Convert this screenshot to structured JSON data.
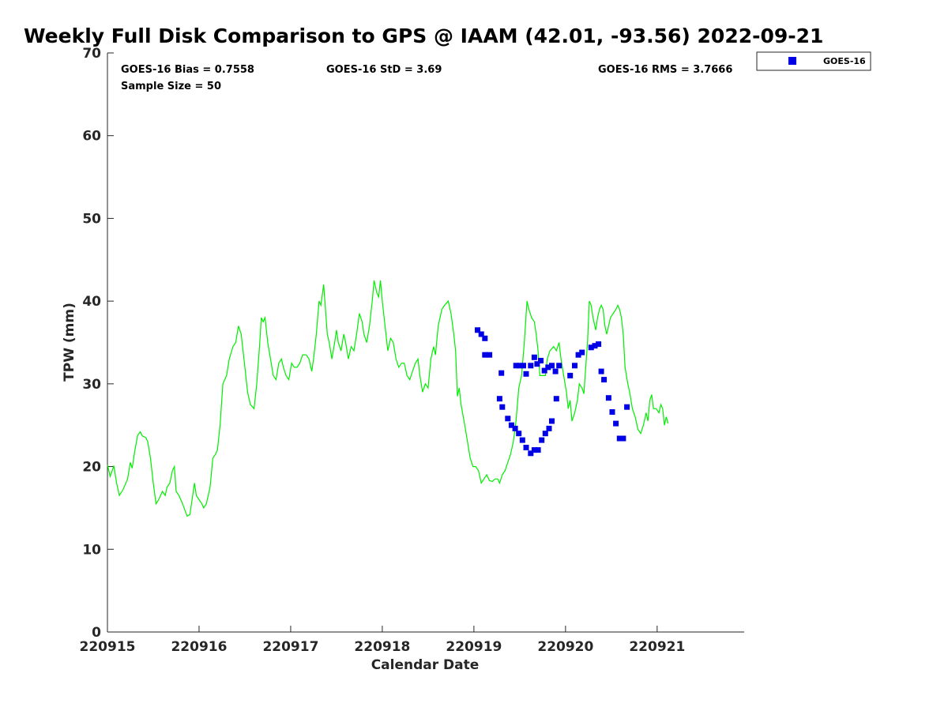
{
  "chart_data": {
    "type": "scatter",
    "title": "Weekly Full Disk Comparison to GPS @ IAAM (42.01, -93.56) 2022-09-21",
    "xlabel": "Calendar Date",
    "ylabel": "TPW (mm)",
    "xlim": [
      0,
      6.95
    ],
    "ylim": [
      0,
      70
    ],
    "xticks": [
      0,
      1,
      2,
      3,
      4,
      5,
      6
    ],
    "xtick_labels": [
      "220915",
      "220916",
      "220917",
      "220918",
      "220919",
      "220920",
      "220921"
    ],
    "yticks": [
      0,
      10,
      20,
      30,
      40,
      50,
      60,
      70
    ],
    "ytick_labels": [
      "0",
      "10",
      "20",
      "30",
      "40",
      "50",
      "60",
      "70"
    ],
    "grid": false,
    "legend_position": "top-right-outside",
    "stats": {
      "bias": "GOES-16 Bias = 0.7558",
      "std": "GOES-16 StD = 3.69",
      "rms": "GOES-16 RMS = 3.7666",
      "sample": "Sample Size = 50"
    },
    "series": [
      {
        "name": "GPS",
        "kind": "line",
        "color": "#00ee00",
        "points": [
          [
            0.0,
            20.2
          ],
          [
            0.03,
            18.8
          ],
          [
            0.07,
            20.1
          ],
          [
            0.1,
            18.0
          ],
          [
            0.13,
            16.5
          ],
          [
            0.17,
            17.2
          ],
          [
            0.22,
            18.5
          ],
          [
            0.25,
            20.5
          ],
          [
            0.27,
            19.8
          ],
          [
            0.3,
            22.0
          ],
          [
            0.33,
            23.8
          ],
          [
            0.36,
            24.2
          ],
          [
            0.38,
            23.7
          ],
          [
            0.42,
            23.5
          ],
          [
            0.44,
            23.0
          ],
          [
            0.47,
            21.0
          ],
          [
            0.5,
            18.0
          ],
          [
            0.53,
            15.5
          ],
          [
            0.56,
            16.0
          ],
          [
            0.6,
            17.0
          ],
          [
            0.63,
            16.5
          ],
          [
            0.65,
            17.5
          ],
          [
            0.68,
            18.0
          ],
          [
            0.71,
            19.5
          ],
          [
            0.73,
            20.0
          ],
          [
            0.75,
            17.0
          ],
          [
            0.78,
            16.5
          ],
          [
            0.82,
            15.5
          ],
          [
            0.87,
            14.0
          ],
          [
            0.9,
            14.2
          ],
          [
            0.93,
            16.5
          ],
          [
            0.95,
            18.0
          ],
          [
            0.97,
            16.5
          ],
          [
            1.0,
            16.0
          ],
          [
            1.03,
            15.5
          ],
          [
            1.05,
            15.0
          ],
          [
            1.08,
            15.5
          ],
          [
            1.12,
            17.5
          ],
          [
            1.15,
            21.0
          ],
          [
            1.18,
            21.5
          ],
          [
            1.2,
            22.0
          ],
          [
            1.23,
            25.0
          ],
          [
            1.26,
            30.0
          ],
          [
            1.3,
            31.0
          ],
          [
            1.33,
            33.0
          ],
          [
            1.37,
            34.5
          ],
          [
            1.4,
            35.0
          ],
          [
            1.43,
            37.0
          ],
          [
            1.46,
            36.0
          ],
          [
            1.5,
            32.0
          ],
          [
            1.53,
            29.0
          ],
          [
            1.56,
            27.5
          ],
          [
            1.6,
            27.0
          ],
          [
            1.63,
            30.0
          ],
          [
            1.66,
            34.5
          ],
          [
            1.68,
            38.0
          ],
          [
            1.7,
            37.5
          ],
          [
            1.72,
            38.0
          ],
          [
            1.75,
            35.0
          ],
          [
            1.78,
            33.0
          ],
          [
            1.81,
            31.0
          ],
          [
            1.84,
            30.5
          ],
          [
            1.87,
            32.5
          ],
          [
            1.9,
            33.0
          ],
          [
            1.92,
            32.0
          ],
          [
            1.95,
            31.0
          ],
          [
            1.98,
            30.5
          ],
          [
            2.01,
            32.5
          ],
          [
            2.04,
            32.0
          ],
          [
            2.07,
            32.0
          ],
          [
            2.1,
            32.5
          ],
          [
            2.13,
            33.5
          ],
          [
            2.17,
            33.5
          ],
          [
            2.2,
            33.0
          ],
          [
            2.23,
            31.5
          ],
          [
            2.25,
            33.0
          ],
          [
            2.28,
            36.0
          ],
          [
            2.31,
            40.0
          ],
          [
            2.33,
            39.5
          ],
          [
            2.36,
            42.0
          ],
          [
            2.38,
            39.0
          ],
          [
            2.4,
            36.0
          ],
          [
            2.42,
            35.0
          ],
          [
            2.45,
            33.0
          ],
          [
            2.48,
            35.0
          ],
          [
            2.5,
            36.5
          ],
          [
            2.52,
            35.0
          ],
          [
            2.55,
            34.0
          ],
          [
            2.58,
            36.0
          ],
          [
            2.6,
            35.0
          ],
          [
            2.63,
            33.0
          ],
          [
            2.66,
            34.5
          ],
          [
            2.69,
            34.0
          ],
          [
            2.72,
            36.0
          ],
          [
            2.75,
            38.5
          ],
          [
            2.78,
            37.5
          ],
          [
            2.8,
            36.0
          ],
          [
            2.83,
            35.0
          ],
          [
            2.86,
            37.0
          ],
          [
            2.89,
            40.0
          ],
          [
            2.91,
            42.5
          ],
          [
            2.94,
            41.0
          ],
          [
            2.96,
            40.5
          ],
          [
            2.98,
            42.5
          ],
          [
            3.0,
            40.0
          ],
          [
            3.03,
            37.0
          ],
          [
            3.06,
            34.0
          ],
          [
            3.09,
            35.5
          ],
          [
            3.12,
            35.0
          ],
          [
            3.15,
            33.0
          ],
          [
            3.18,
            32.0
          ],
          [
            3.21,
            32.5
          ],
          [
            3.24,
            32.5
          ],
          [
            3.27,
            31.0
          ],
          [
            3.3,
            30.5
          ],
          [
            3.33,
            31.5
          ],
          [
            3.36,
            32.5
          ],
          [
            3.39,
            33.0
          ],
          [
            3.41,
            31.0
          ],
          [
            3.44,
            29.0
          ],
          [
            3.47,
            30.0
          ],
          [
            3.5,
            29.5
          ],
          [
            3.53,
            33.0
          ],
          [
            3.56,
            34.5
          ],
          [
            3.58,
            33.5
          ],
          [
            3.61,
            37.0
          ],
          [
            3.65,
            39.0
          ],
          [
            3.68,
            39.5
          ],
          [
            3.72,
            40.0
          ],
          [
            3.75,
            38.5
          ],
          [
            3.78,
            36.0
          ],
          [
            3.8,
            34.0
          ],
          [
            3.82,
            28.5
          ],
          [
            3.84,
            29.5
          ],
          [
            3.86,
            27.5
          ],
          [
            3.9,
            25.0
          ],
          [
            3.93,
            23.0
          ],
          [
            3.96,
            21.0
          ],
          [
            3.99,
            20.0
          ],
          [
            4.02,
            20.0
          ],
          [
            4.05,
            19.5
          ],
          [
            4.08,
            18.0
          ],
          [
            4.11,
            18.5
          ],
          [
            4.14,
            19.0
          ],
          [
            4.17,
            18.3
          ],
          [
            4.2,
            18.2
          ],
          [
            4.23,
            18.5
          ],
          [
            4.26,
            18.5
          ],
          [
            4.28,
            18.0
          ],
          [
            4.31,
            19.0
          ],
          [
            4.34,
            19.5
          ],
          [
            4.37,
            20.5
          ],
          [
            4.4,
            21.5
          ],
          [
            4.43,
            23.0
          ],
          [
            4.46,
            25.5
          ],
          [
            4.49,
            29.5
          ],
          [
            4.52,
            31.0
          ],
          [
            4.55,
            35.0
          ],
          [
            4.58,
            40.0
          ],
          [
            4.6,
            39.0
          ],
          [
            4.63,
            38.0
          ],
          [
            4.66,
            37.5
          ],
          [
            4.68,
            36.0
          ],
          [
            4.7,
            34.0
          ],
          [
            4.72,
            31.0
          ],
          [
            4.75,
            31.0
          ],
          [
            4.78,
            31.0
          ],
          [
            4.8,
            33.0
          ],
          [
            4.83,
            34.0
          ],
          [
            4.87,
            34.5
          ],
          [
            4.9,
            34.0
          ],
          [
            4.93,
            35.0
          ],
          [
            4.95,
            33.0
          ],
          [
            4.98,
            31.0
          ],
          [
            5.01,
            29.0
          ],
          [
            5.03,
            27.0
          ],
          [
            5.05,
            28.0
          ],
          [
            5.07,
            25.5
          ],
          [
            5.1,
            26.5
          ],
          [
            5.13,
            28.0
          ],
          [
            5.15,
            30.0
          ],
          [
            5.18,
            29.5
          ],
          [
            5.2,
            28.8
          ],
          [
            5.22,
            32.0
          ],
          [
            5.24,
            35.0
          ],
          [
            5.26,
            40.0
          ],
          [
            5.28,
            39.5
          ],
          [
            5.3,
            38.0
          ],
          [
            5.33,
            36.5
          ],
          [
            5.35,
            38.0
          ],
          [
            5.37,
            39.0
          ],
          [
            5.39,
            39.5
          ],
          [
            5.41,
            39.0
          ],
          [
            5.43,
            37.0
          ],
          [
            5.45,
            36.0
          ],
          [
            5.47,
            37.0
          ],
          [
            5.49,
            38.0
          ],
          [
            5.52,
            38.5
          ],
          [
            5.55,
            39.0
          ],
          [
            5.57,
            39.5
          ],
          [
            5.59,
            39.0
          ],
          [
            5.61,
            38.0
          ],
          [
            5.63,
            36.0
          ],
          [
            5.65,
            32.0
          ],
          [
            5.68,
            30.0
          ],
          [
            5.7,
            29.0
          ],
          [
            5.73,
            27.0
          ],
          [
            5.76,
            26.0
          ],
          [
            5.79,
            24.5
          ],
          [
            5.82,
            24.0
          ],
          [
            5.85,
            25.0
          ],
          [
            5.88,
            26.5
          ],
          [
            5.9,
            25.5
          ],
          [
            5.92,
            28.0
          ],
          [
            5.94,
            28.7
          ],
          [
            5.96,
            27.0
          ],
          [
            5.99,
            27.0
          ],
          [
            6.02,
            26.5
          ],
          [
            6.04,
            27.5
          ],
          [
            6.06,
            27.0
          ],
          [
            6.08,
            25.0
          ],
          [
            6.1,
            26.0
          ],
          [
            6.12,
            25.2
          ]
        ]
      },
      {
        "name": "GOES-16",
        "kind": "marker",
        "color": "#0000e6",
        "points": [
          [
            4.12,
            33.5
          ],
          [
            4.28,
            28.2
          ],
          [
            4.31,
            27.2
          ],
          [
            4.37,
            25.8
          ],
          [
            4.41,
            25.0
          ],
          [
            4.45,
            24.6
          ],
          [
            4.49,
            24.0
          ],
          [
            4.53,
            23.2
          ],
          [
            4.57,
            22.3
          ],
          [
            4.62,
            21.6
          ],
          [
            4.66,
            22.0
          ],
          [
            4.7,
            22.0
          ],
          [
            4.74,
            23.2
          ],
          [
            4.78,
            24.0
          ],
          [
            4.82,
            24.6
          ],
          [
            4.85,
            25.5
          ],
          [
            4.9,
            28.2
          ],
          [
            4.04,
            36.5
          ],
          [
            4.08,
            36.0
          ],
          [
            4.12,
            35.5
          ],
          [
            4.17,
            33.5
          ],
          [
            4.3,
            31.3
          ],
          [
            4.46,
            32.2
          ],
          [
            4.5,
            32.2
          ],
          [
            4.54,
            32.2
          ],
          [
            4.57,
            31.2
          ],
          [
            4.62,
            32.2
          ],
          [
            4.66,
            33.2
          ],
          [
            4.69,
            32.4
          ],
          [
            4.73,
            32.8
          ],
          [
            4.77,
            31.6
          ],
          [
            4.81,
            32.0
          ],
          [
            4.85,
            32.2
          ],
          [
            4.89,
            31.5
          ],
          [
            4.93,
            32.2
          ],
          [
            5.05,
            31.0
          ],
          [
            5.1,
            32.2
          ],
          [
            5.14,
            33.5
          ],
          [
            5.18,
            33.8
          ],
          [
            5.28,
            34.4
          ],
          [
            5.32,
            34.6
          ],
          [
            5.36,
            34.8
          ],
          [
            5.39,
            31.5
          ],
          [
            5.42,
            30.5
          ],
          [
            5.47,
            28.3
          ],
          [
            5.51,
            26.6
          ],
          [
            5.55,
            25.2
          ],
          [
            5.59,
            23.4
          ],
          [
            5.63,
            23.4
          ],
          [
            5.67,
            27.2
          ]
        ]
      }
    ]
  }
}
